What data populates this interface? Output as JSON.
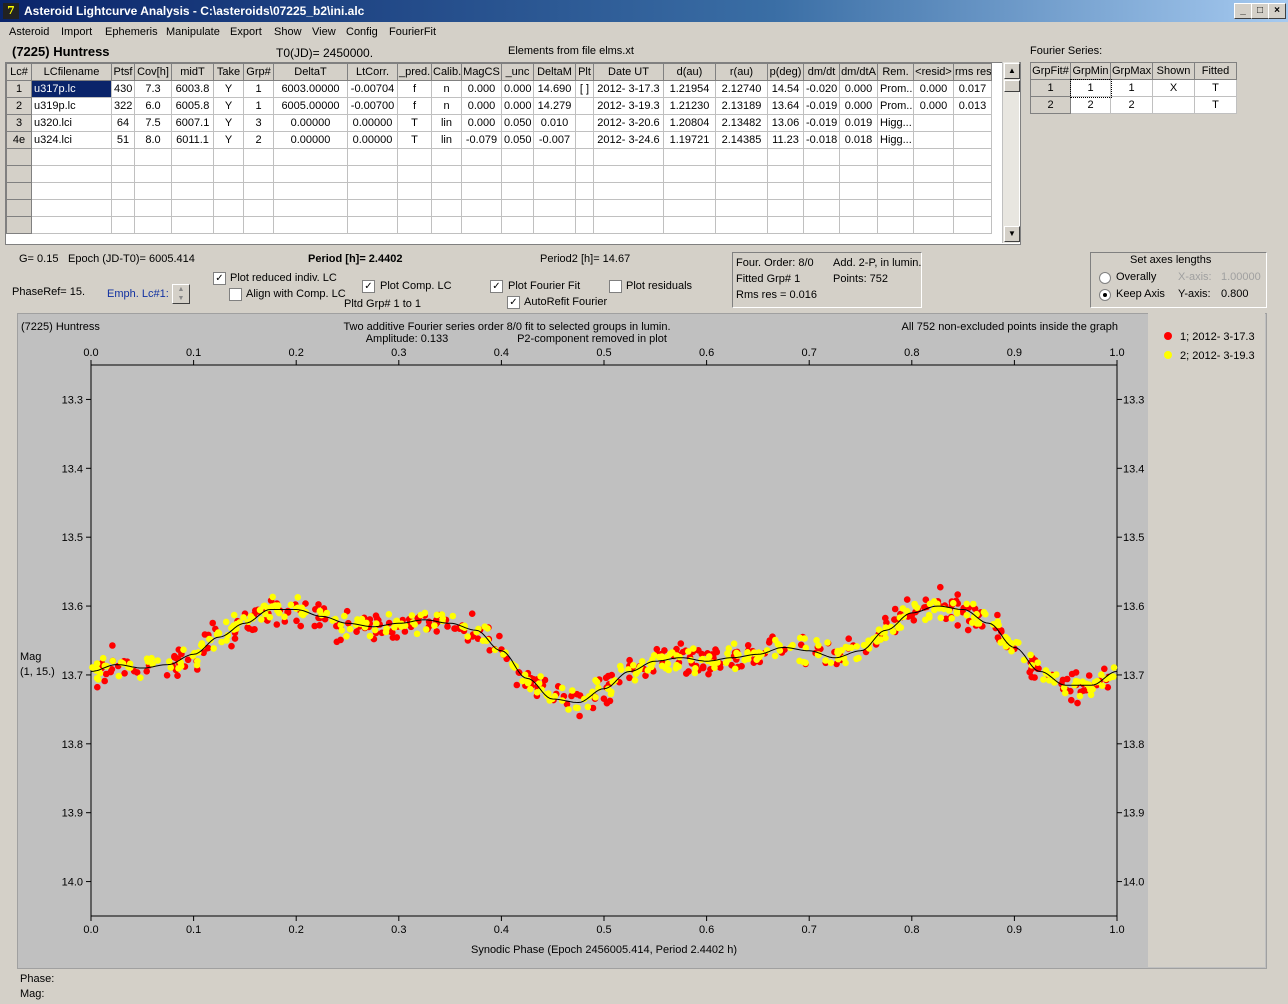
{
  "window": {
    "title": "Asteroid Lightcurve Analysis - C:\\asteroids\\07225_b2\\ini.alc",
    "buttons": [
      "_",
      "□",
      "×"
    ]
  },
  "menu": [
    "Asteroid",
    "Import",
    "Ephemeris",
    "Manipulate",
    "Export",
    "Show",
    "View",
    "Config",
    "FourierFit"
  ],
  "header": {
    "asteroid_name": "(7225) Huntress",
    "t0": "T0(JD)= 2450000.",
    "elements": "Elements from file elms.xt",
    "fourier_series_label": "Fourier Series:"
  },
  "lc_table": {
    "columns": [
      "Lc#",
      "LCfilename",
      "Ptsf",
      "Cov[h]",
      "midT",
      "Take",
      "Grp#",
      "DeltaT",
      "LtCorr.",
      "_pred.",
      "Calib.",
      "MagCS",
      "_unc",
      "DeltaM",
      "Plt",
      "Date UT",
      "d(au)",
      "r(au)",
      "p(deg)",
      "dm/dt",
      "dm/dtA",
      "Rem.",
      "<resid>",
      "rms res"
    ],
    "rows": [
      [
        "1",
        "u317p.lc",
        "430",
        "7.3",
        "6003.8",
        "Y",
        "1",
        "6003.00000",
        "-0.00704",
        "f",
        "n",
        "0.000",
        "0.000",
        "14.690",
        "[ ]",
        "2012- 3-17.3",
        "1.21954",
        "2.12740",
        "14.54",
        "-0.020",
        "0.000",
        "Prom...",
        "0.000",
        "0.017"
      ],
      [
        "2",
        "u319p.lc",
        "322",
        "6.0",
        "6005.8",
        "Y",
        "1",
        "6005.00000",
        "-0.00700",
        "f",
        "n",
        "0.000",
        "0.000",
        "14.279",
        "",
        "2012- 3-19.3",
        "1.21230",
        "2.13189",
        "13.64",
        "-0.019",
        "0.000",
        "Prom...",
        "0.000",
        "0.013"
      ],
      [
        "3",
        "u320.lci",
        "64",
        "7.5",
        "6007.1",
        "Y",
        "3",
        "0.00000",
        "0.00000",
        "T",
        "lin",
        "0.000",
        "0.050",
        "0.010",
        "",
        "2012- 3-20.6",
        "1.20804",
        "2.13482",
        "13.06",
        "-0.019",
        "0.019",
        "Higg...",
        "",
        ""
      ],
      [
        "4e",
        "u324.lci",
        "51",
        "8.0",
        "6011.1",
        "Y",
        "2",
        "0.00000",
        "0.00000",
        "T",
        "lin",
        "-0.079",
        "0.050",
        "-0.007",
        "",
        "2012- 3-24.6",
        "1.19721",
        "2.14385",
        "11.23",
        "-0.018",
        "0.018",
        "Higg...",
        "",
        ""
      ]
    ],
    "empty_rows": 5
  },
  "fourier_table": {
    "columns": [
      "GrpFit#",
      "GrpMin",
      "GrpMax",
      "Shown",
      "Fitted"
    ],
    "rows": [
      [
        "1",
        "1",
        "1",
        "X",
        "T"
      ],
      [
        "2",
        "2",
        "2",
        "",
        "T"
      ]
    ]
  },
  "controls": {
    "g_value": "G= 0.15",
    "epoch": "Epoch (JD-T0)= 6005.414",
    "period": "Period [h]= 2.4402",
    "period2": "Period2 [h]= 14.67",
    "phaseref": "PhaseRef= 15.",
    "emph_lc": "Emph. Lc#1:",
    "plot_reduced": "Plot reduced indiv. LC",
    "align_comp": "Align with Comp. LC",
    "plot_comp": "Plot Comp. LC",
    "pltd_grp": "Pltd Grp#  1   to    1",
    "plot_fourier": "Plot Fourier Fit",
    "autorefit": "AutoRefit Fourier",
    "plot_residuals": "Plot residuals",
    "four_order": "Four. Order:  8/0",
    "add_2p": "Add. 2-P, in lumin.",
    "fitted_grp": "Fitted Grp# 1",
    "points": "Points: 752",
    "rms_res": "Rms res     = 0.016",
    "axes_title": "Set axes lengths",
    "overally": "Overally",
    "keep_axis": "Keep Axis",
    "xaxis_label": "X-axis:",
    "xaxis_value": "1.00000",
    "yaxis_label": "Y-axis:",
    "yaxis_value": "0.800",
    "check_states": {
      "plot_reduced": true,
      "align_comp": false,
      "plot_comp": true,
      "plot_fourier": true,
      "autorefit": true,
      "plot_residuals": false
    },
    "radio_selected": "keep_axis"
  },
  "status": {
    "phase": "Phase:",
    "mag": "Mag:"
  },
  "chart_data": {
    "type": "scatter",
    "title_left": "(7225) Huntress",
    "title_center_1": "Two additive Fourier series order 8/0 fit to selected groups in lumin.",
    "title_center_2": "Amplitude: 0.133",
    "title_center_3": "P2-component removed in plot",
    "title_right": "All 752 non-excluded points inside the graph",
    "xlabel": "Synodic Phase (Epoch 2456005.414, Period 2.4402 h)",
    "ylabel_1": "Mag",
    "ylabel_2": "(1, 15.)",
    "xlim": [
      0.0,
      1.0
    ],
    "ylim": [
      13.25,
      14.05
    ],
    "y_inverted": true,
    "x_ticks": [
      "0.0",
      "0.1",
      "0.2",
      "0.3",
      "0.4",
      "0.5",
      "0.6",
      "0.7",
      "0.8",
      "0.9",
      "1.0"
    ],
    "y_ticks": [
      "13.3",
      "13.4",
      "13.5",
      "13.6",
      "13.7",
      "13.8",
      "13.9",
      "14.0"
    ],
    "legend_position": "top-right, outside",
    "series": [
      {
        "name": "1; 2012- 3-17.3",
        "color": "#ff0000"
      },
      {
        "name": "2; 2012- 3-19.3",
        "color": "#ffff00"
      }
    ],
    "fit_curve_color": "#000000",
    "fit_curve": {
      "x": [
        0.0,
        0.025,
        0.05,
        0.075,
        0.1,
        0.125,
        0.15,
        0.175,
        0.2,
        0.225,
        0.25,
        0.275,
        0.3,
        0.325,
        0.35,
        0.375,
        0.4,
        0.425,
        0.45,
        0.475,
        0.5,
        0.525,
        0.55,
        0.575,
        0.6,
        0.625,
        0.65,
        0.675,
        0.7,
        0.725,
        0.75,
        0.775,
        0.8,
        0.825,
        0.85,
        0.875,
        0.9,
        0.925,
        0.95,
        0.975,
        1.0
      ],
      "y": [
        13.695,
        13.685,
        13.69,
        13.685,
        13.67,
        13.645,
        13.625,
        13.605,
        13.605,
        13.615,
        13.625,
        13.63,
        13.625,
        13.62,
        13.625,
        13.635,
        13.665,
        13.705,
        13.735,
        13.74,
        13.72,
        13.695,
        13.68,
        13.675,
        13.68,
        13.675,
        13.67,
        13.66,
        13.665,
        13.675,
        13.665,
        13.635,
        13.61,
        13.6,
        13.605,
        13.625,
        13.66,
        13.695,
        13.715,
        13.715,
        13.695
      ]
    },
    "scatter_note": "Points drawn as noisy samples around fit curve, ~376 per series"
  }
}
